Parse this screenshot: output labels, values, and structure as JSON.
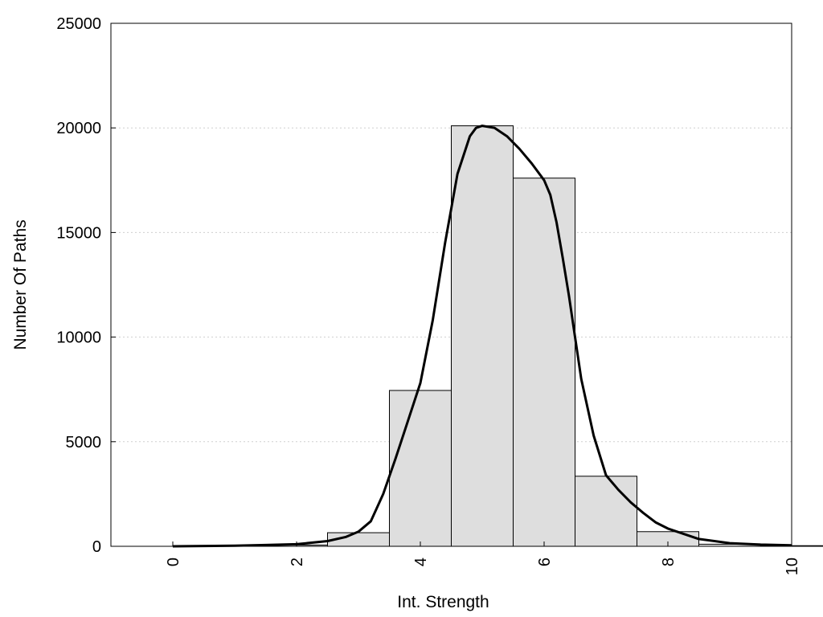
{
  "chart_data": {
    "type": "bar",
    "xlabel": "Int. Strength",
    "ylabel": "Number Of Paths",
    "xlim": [
      -1,
      10
    ],
    "ylim": [
      0,
      25000
    ],
    "x_ticks": [
      "0",
      "2",
      "4",
      "6",
      "8",
      "10"
    ],
    "y_ticks": [
      "0",
      "5000",
      "10000",
      "15000",
      "20000",
      "25000"
    ],
    "grid": "horizontal-dotted",
    "legend": "none",
    "bars": {
      "centers": [
        0,
        1,
        2,
        3,
        4,
        5,
        6,
        7,
        8,
        9,
        10
      ],
      "values": [
        0,
        20,
        60,
        650,
        7450,
        20100,
        17600,
        3350,
        700,
        100,
        30
      ],
      "width": 1,
      "fill": "#dedede",
      "stroke": "#000000"
    },
    "density_curve": {
      "x": [
        0,
        0.5,
        1,
        1.5,
        2,
        2.5,
        2.8,
        3,
        3.2,
        3.4,
        3.6,
        3.8,
        4,
        4.2,
        4.4,
        4.6,
        4.8,
        4.9,
        5,
        5.2,
        5.4,
        5.6,
        5.8,
        6,
        6.1,
        6.2,
        6.3,
        6.4,
        6.5,
        6.6,
        6.8,
        7,
        7.2,
        7.4,
        7.6,
        7.8,
        8,
        8.5,
        9,
        9.5,
        10
      ],
      "y": [
        0,
        15,
        30,
        60,
        100,
        250,
        450,
        700,
        1200,
        2500,
        4200,
        6000,
        7800,
        10800,
        14500,
        17800,
        19600,
        20000,
        20100,
        20000,
        19600,
        19000,
        18300,
        17500,
        16800,
        15500,
        13800,
        12000,
        10000,
        8000,
        5300,
        3400,
        2700,
        2100,
        1600,
        1150,
        850,
        350,
        150,
        80,
        50
      ],
      "stroke": "#000000"
    }
  }
}
